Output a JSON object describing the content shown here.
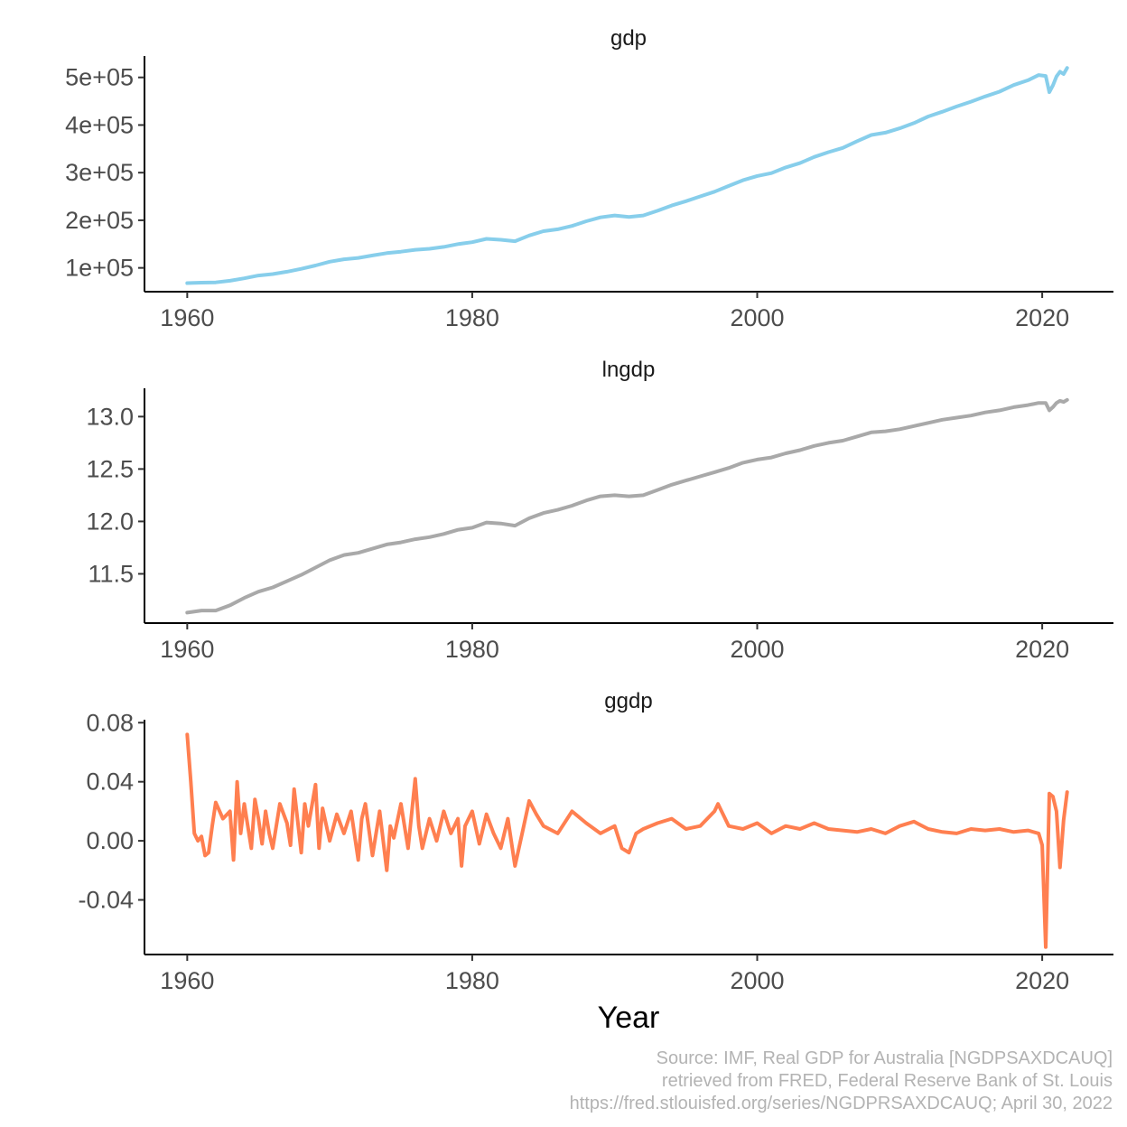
{
  "chart_data": [
    {
      "type": "line",
      "title": "gdp",
      "color": "#87CEEB",
      "xlim": [
        1957,
        2025
      ],
      "ylim": [
        50000,
        545000
      ],
      "x_ticks": [
        1960,
        1980,
        2000,
        2020
      ],
      "x_tick_labels": [
        "1960",
        "1980",
        "2000",
        "2020"
      ],
      "y_ticks": [
        100000,
        200000,
        300000,
        400000,
        500000
      ],
      "y_tick_labels": [
        "1e+05",
        "2e+05",
        "3e+05",
        "4e+05",
        "5e+05"
      ],
      "series": [
        {
          "x": [
            1960,
            1961,
            1962,
            1963,
            1964,
            1965,
            1966,
            1967,
            1968,
            1969,
            1970,
            1971,
            1972,
            1973,
            1974,
            1975,
            1976,
            1977,
            1978,
            1979,
            1980,
            1981,
            1982,
            1983,
            1984,
            1985,
            1986,
            1987,
            1988,
            1989,
            1990,
            1991,
            1992,
            1993,
            1994,
            1995,
            1996,
            1997,
            1998,
            1999,
            2000,
            2001,
            2002,
            2003,
            2004,
            2005,
            2006,
            2007,
            2008,
            2009,
            2010,
            2011,
            2012,
            2013,
            2014,
            2015,
            2016,
            2017,
            2018,
            2019,
            2019.75,
            2020.25,
            2020.5,
            2020.75,
            2021.0,
            2021.25,
            2021.5,
            2021.75
          ],
          "values": [
            68000,
            69000,
            69500,
            73000,
            78000,
            84000,
            87000,
            92000,
            98000,
            105000,
            113000,
            118000,
            121000,
            126000,
            131000,
            134000,
            138000,
            140000,
            144000,
            150000,
            154000,
            161000,
            159000,
            156000,
            168000,
            177000,
            181000,
            188000,
            198000,
            206000,
            210000,
            207000,
            210000,
            220000,
            231000,
            240000,
            250000,
            260000,
            272000,
            284000,
            293000,
            299000,
            311000,
            320000,
            333000,
            343000,
            352000,
            366000,
            379000,
            384000,
            393000,
            404000,
            418000,
            428000,
            439000,
            449000,
            460000,
            470000,
            484000,
            494000,
            505000,
            503000,
            469000,
            483000,
            502000,
            512000,
            507000,
            520000
          ]
        }
      ]
    },
    {
      "type": "line",
      "title": "lngdp",
      "color": "#A9A9A9",
      "xlim": [
        1957,
        2025
      ],
      "ylim": [
        11.03,
        13.27
      ],
      "x_ticks": [
        1960,
        1980,
        2000,
        2020
      ],
      "x_tick_labels": [
        "1960",
        "1980",
        "2000",
        "2020"
      ],
      "y_ticks": [
        11.5,
        12.0,
        12.5,
        13.0
      ],
      "y_tick_labels": [
        "11.5",
        "12.0",
        "12.5",
        "13.0"
      ],
      "series": [
        {
          "x": [
            1960,
            1961,
            1962,
            1963,
            1964,
            1965,
            1966,
            1967,
            1968,
            1969,
            1970,
            1971,
            1972,
            1973,
            1974,
            1975,
            1976,
            1977,
            1978,
            1979,
            1980,
            1981,
            1982,
            1983,
            1984,
            1985,
            1986,
            1987,
            1988,
            1989,
            1990,
            1991,
            1992,
            1993,
            1994,
            1995,
            1996,
            1997,
            1998,
            1999,
            2000,
            2001,
            2002,
            2003,
            2004,
            2005,
            2006,
            2007,
            2008,
            2009,
            2010,
            2011,
            2012,
            2013,
            2014,
            2015,
            2016,
            2017,
            2018,
            2019,
            2019.75,
            2020.25,
            2020.5,
            2020.75,
            2021.0,
            2021.25,
            2021.5,
            2021.75
          ],
          "values": [
            11.13,
            11.15,
            11.15,
            11.2,
            11.27,
            11.33,
            11.37,
            11.43,
            11.49,
            11.56,
            11.63,
            11.68,
            11.7,
            11.74,
            11.78,
            11.8,
            11.83,
            11.85,
            11.88,
            11.92,
            11.94,
            11.99,
            11.98,
            11.96,
            12.03,
            12.08,
            12.11,
            12.15,
            12.2,
            12.24,
            12.25,
            12.24,
            12.25,
            12.3,
            12.35,
            12.39,
            12.43,
            12.47,
            12.51,
            12.56,
            12.59,
            12.61,
            12.65,
            12.68,
            12.72,
            12.75,
            12.77,
            12.81,
            12.85,
            12.86,
            12.88,
            12.91,
            12.94,
            12.97,
            12.99,
            13.01,
            13.04,
            13.06,
            13.09,
            13.11,
            13.13,
            13.13,
            13.06,
            13.09,
            13.13,
            13.15,
            13.14,
            13.16
          ]
        }
      ]
    },
    {
      "type": "line",
      "title": "ggdp",
      "color": "#FF7F50",
      "xlim": [
        1957,
        2025
      ],
      "ylim": [
        -0.077,
        0.082
      ],
      "x_ticks": [
        1960,
        1980,
        2000,
        2020
      ],
      "x_tick_labels": [
        "1960",
        "1980",
        "2000",
        "2020"
      ],
      "y_ticks": [
        -0.04,
        0.0,
        0.04,
        0.08
      ],
      "y_tick_labels": [
        "-0.04",
        "0.00",
        "0.04",
        "0.08"
      ],
      "xlabel": "Year",
      "series": [
        {
          "x": [
            1960.0,
            1960.25,
            1960.5,
            1960.75,
            1961.0,
            1961.25,
            1961.5,
            1961.75,
            1962.0,
            1962.5,
            1963.0,
            1963.25,
            1963.5,
            1963.75,
            1964.0,
            1964.25,
            1964.5,
            1964.75,
            1965.0,
            1965.25,
            1965.5,
            1965.75,
            1966.0,
            1966.5,
            1967.0,
            1967.25,
            1967.5,
            1968.0,
            1968.25,
            1968.5,
            1969.0,
            1969.25,
            1969.5,
            1970.0,
            1970.5,
            1971.0,
            1971.5,
            1972.0,
            1972.25,
            1972.5,
            1973.0,
            1973.5,
            1974.0,
            1974.25,
            1974.5,
            1975.0,
            1975.5,
            1976.0,
            1976.25,
            1976.5,
            1977.0,
            1977.5,
            1978.0,
            1978.5,
            1979.0,
            1979.25,
            1979.5,
            1980.0,
            1980.5,
            1981.0,
            1981.5,
            1982.0,
            1982.5,
            1983.0,
            1983.5,
            1984.0,
            1984.5,
            1985.0,
            1986.0,
            1987.0,
            1988.0,
            1989.0,
            1990.0,
            1990.5,
            1991.0,
            1991.5,
            1992.0,
            1993.0,
            1994.0,
            1995.0,
            1996.0,
            1997.0,
            1997.25,
            1998.0,
            1999.0,
            2000.0,
            2001.0,
            2002.0,
            2003.0,
            2004.0,
            2005.0,
            2006.0,
            2007.0,
            2008.0,
            2009.0,
            2010.0,
            2011.0,
            2012.0,
            2013.0,
            2014.0,
            2015.0,
            2016.0,
            2017.0,
            2018.0,
            2019.0,
            2019.75,
            2020.0,
            2020.25,
            2020.5,
            2020.75,
            2021.0,
            2021.25,
            2021.5,
            2021.75
          ],
          "values": [
            0.072,
            0.04,
            0.005,
            0.0,
            0.003,
            -0.01,
            -0.008,
            0.01,
            0.026,
            0.015,
            0.02,
            -0.013,
            0.04,
            0.005,
            0.025,
            0.01,
            -0.005,
            0.028,
            0.015,
            -0.002,
            0.02,
            0.005,
            -0.005,
            0.025,
            0.012,
            -0.003,
            0.035,
            -0.008,
            0.025,
            0.01,
            0.038,
            -0.005,
            0.022,
            0.0,
            0.018,
            0.005,
            0.02,
            -0.013,
            0.015,
            0.025,
            -0.01,
            0.02,
            -0.02,
            0.01,
            0.002,
            0.025,
            -0.005,
            0.042,
            0.01,
            -0.005,
            0.015,
            0.0,
            0.02,
            0.005,
            0.015,
            -0.017,
            0.01,
            0.02,
            -0.002,
            0.018,
            0.005,
            -0.005,
            0.015,
            -0.017,
            0.005,
            0.027,
            0.018,
            0.01,
            0.005,
            0.02,
            0.012,
            0.005,
            0.01,
            -0.005,
            -0.008,
            0.005,
            0.008,
            0.012,
            0.015,
            0.008,
            0.01,
            0.02,
            0.025,
            0.01,
            0.008,
            0.012,
            0.005,
            0.01,
            0.008,
            0.012,
            0.008,
            0.007,
            0.006,
            0.008,
            0.005,
            0.01,
            0.013,
            0.008,
            0.006,
            0.005,
            0.008,
            0.007,
            0.008,
            0.006,
            0.007,
            0.005,
            -0.003,
            -0.072,
            0.032,
            0.03,
            0.02,
            -0.018,
            0.014,
            0.033
          ]
        }
      ]
    }
  ],
  "caption": [
    "Source: IMF, Real GDP for Australia [NGDPSAXDCAUQ]",
    "retrieved from FRED, Federal Reserve Bank of St. Louis",
    "https://fred.stlouisfed.org/series/NGDPRSAXDCAUQ; April 30, 2022"
  ]
}
